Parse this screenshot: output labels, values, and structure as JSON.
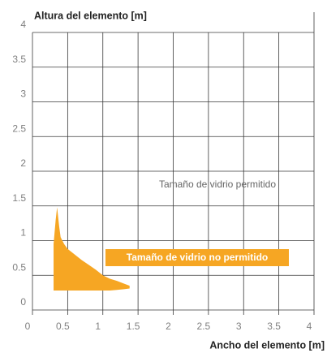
{
  "chart_data": {
    "type": "area",
    "y_label": "Altura del elemento [m]",
    "x_label": "Ancho del elemento [m]",
    "annotations": [
      "Tamaño de vidrio permitido"
    ],
    "xlim": [
      0,
      4
    ],
    "ylim": [
      0,
      4
    ],
    "xticks": [
      0,
      0.5,
      1,
      1.5,
      2,
      2.5,
      3,
      3.5,
      4
    ],
    "yticks": [
      0,
      0.5,
      1,
      1.5,
      2,
      2.5,
      3,
      3.5,
      4
    ],
    "grid": true,
    "x": [
      0.3,
      0.33,
      0.35,
      0.38,
      0.4,
      0.45,
      0.5,
      0.6,
      0.7,
      0.8,
      0.9,
      1.0,
      1.1,
      1.2,
      1.3,
      1.38
    ],
    "series": [
      {
        "name": "Tamaño de vidrio no permitido",
        "color": "#f6a623",
        "values": [
          0.95,
          1.3,
          1.48,
          1.2,
          1.05,
          0.95,
          0.88,
          0.8,
          0.72,
          0.65,
          0.58,
          0.5,
          0.45,
          0.42,
          0.38,
          0.35
        ],
        "lower": [
          0.28,
          0.28,
          0.28,
          0.28,
          0.28,
          0.28,
          0.28,
          0.28,
          0.28,
          0.28,
          0.28,
          0.28,
          0.28,
          0.29,
          0.3,
          0.31
        ]
      }
    ]
  }
}
